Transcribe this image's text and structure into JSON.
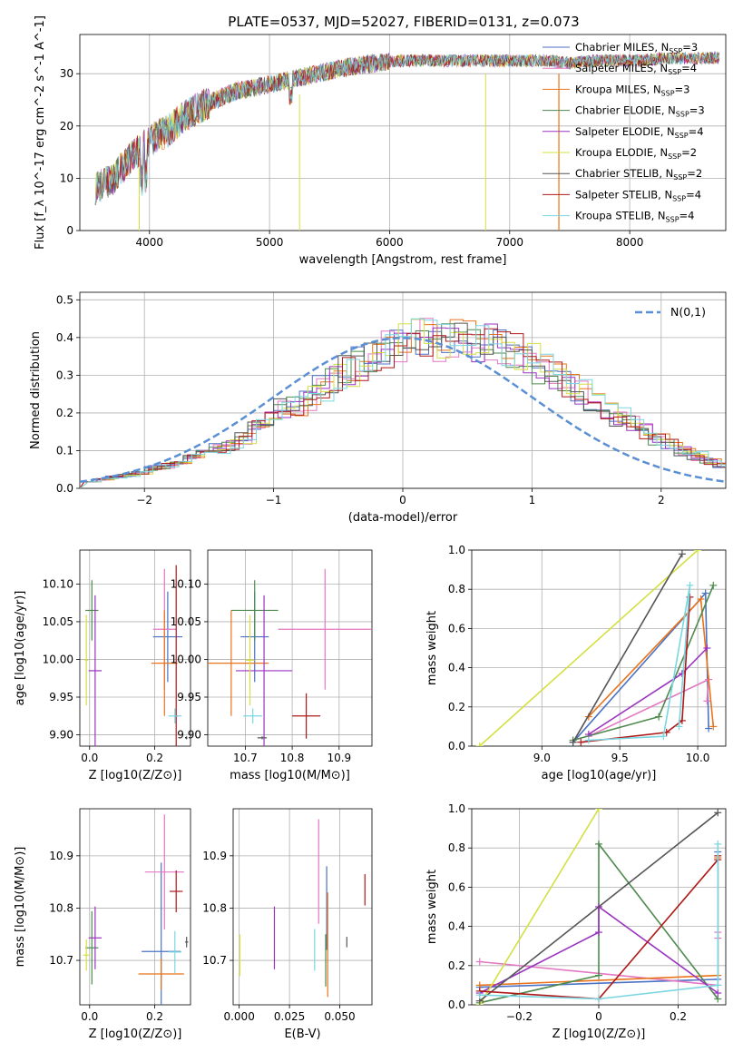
{
  "figure_title": "PLATE=0537, MJD=52027, FIBERID=0131, z=0.073",
  "colors": {
    "Chabrier MILES": "#4c72c4",
    "Salpeter MILES": "#e377c2",
    "Kroupa MILES": "#e8741c",
    "Chabrier ELODIE": "#4e8a4e",
    "Salpeter ELODIE": "#9a34c0",
    "Kroupa ELODIE": "#d4e040",
    "Chabrier STELIB": "#555555",
    "Salpeter STELIB": "#b01818",
    "Kroupa STELIB": "#7ad6e0"
  },
  "legend_labels": [
    "Chabrier MILES, N_SSP=3",
    "Salpeter MILES, N_SSP=4",
    "Kroupa MILES, N_SSP=3",
    "Chabrier ELODIE, N_SSP=3",
    "Salpeter ELODIE, N_SSP=4",
    "Kroupa ELODIE, N_SSP=2",
    "Chabrier STELIB, N_SSP=2",
    "Salpeter STELIB, N_SSP=4",
    "Kroupa STELIB, N_SSP=4"
  ],
  "chart_data": [
    {
      "type": "line",
      "title": "PLATE=0537, MJD=52027, FIBERID=0131, z=0.073",
      "xlabel": "wavelength [Angstrom, rest frame]",
      "ylabel": "Flux [f_λ 10^-17 erg cm^-2 s^-1 A^-1]",
      "xlim": [
        3420,
        8800
      ],
      "ylim": [
        0,
        37.5
      ],
      "xticks": [
        4000,
        5000,
        6000,
        7000,
        8000
      ],
      "yticks": [
        0,
        10,
        20,
        30
      ],
      "x": [
        3550,
        3700,
        3850,
        3950,
        4050,
        4150,
        4300,
        4500,
        4700,
        4900,
        5100,
        5300,
        5500,
        5700,
        5900,
        6100,
        6300,
        6500,
        6700,
        6900,
        7100,
        7300,
        7500,
        7700,
        7900,
        8100,
        8300,
        8500,
        8750
      ],
      "series": [
        {
          "name": "Chabrier MILES, N_SSP=3",
          "values": [
            8,
            10,
            14,
            16,
            18,
            19,
            22,
            24.5,
            26.5,
            27.5,
            28.5,
            29.5,
            30.5,
            31.5,
            32,
            32.5,
            32.5,
            32.5,
            32.5,
            32.5,
            32.5,
            32.5,
            32,
            32.5,
            32.5,
            32.5,
            33,
            33,
            33
          ]
        }
      ],
      "legend": "right"
    },
    {
      "type": "bar",
      "title": "",
      "xlabel": "(data-model)/error",
      "ylabel": "Normed distribution",
      "xlim": [
        -2.5,
        2.5
      ],
      "ylim": [
        0,
        0.52
      ],
      "xticks": [
        -2,
        -1,
        0,
        1,
        2
      ],
      "yticks": [
        0,
        0.1,
        0.2,
        0.3,
        0.4,
        0.5
      ],
      "bin_width": 0.1,
      "bin_start": -2.5,
      "histogram_values": [
        0.02,
        0.025,
        0.03,
        0.035,
        0.04,
        0.055,
        0.06,
        0.07,
        0.085,
        0.1,
        0.105,
        0.115,
        0.135,
        0.16,
        0.18,
        0.21,
        0.22,
        0.24,
        0.265,
        0.29,
        0.31,
        0.33,
        0.35,
        0.37,
        0.39,
        0.41,
        0.4,
        0.39,
        0.395,
        0.4,
        0.39,
        0.385,
        0.37,
        0.36,
        0.34,
        0.32,
        0.3,
        0.28,
        0.26,
        0.23,
        0.21,
        0.19,
        0.17,
        0.15,
        0.13,
        0.115,
        0.1,
        0.085,
        0.07,
        0.06
      ],
      "gaussian_label": "N(0,1)",
      "legend": "top-right"
    },
    {
      "type": "scatter",
      "xlabel": "Z [log10(Z/Z⊙)]",
      "ylabel": "age [log10(age/yr)]",
      "xlim": [
        -0.03,
        0.31
      ],
      "ylim": [
        9.885,
        10.145
      ],
      "xticks": [
        0.0,
        0.2
      ],
      "yticks": [
        9.9,
        9.95,
        10.0,
        10.05,
        10.1
      ],
      "points": [
        {
          "s": "Chabrier MILES",
          "x": 0.24,
          "y": 10.03,
          "xerr": 0.045,
          "yerr": 0.06
        },
        {
          "s": "Salpeter MILES",
          "x": 0.23,
          "y": 10.04,
          "xerr": 0.035,
          "yerr": 0.08
        },
        {
          "s": "Kroupa MILES",
          "x": 0.23,
          "y": 9.995,
          "xerr": 0.04,
          "yerr": 0.07
        },
        {
          "s": "Chabrier ELODIE",
          "x": 0.007,
          "y": 10.065,
          "xerr": 0.02,
          "yerr": 0.04
        },
        {
          "s": "Salpeter ELODIE",
          "x": 0.017,
          "y": 9.985,
          "xerr": 0.02,
          "yerr": 0.1
        },
        {
          "s": "Kroupa ELODIE",
          "x": -0.01,
          "y": 9.999,
          "xerr": 0.005,
          "yerr": 0.06
        },
        {
          "s": "Chabrier STELIB",
          "x": 0.298,
          "y": 9.896,
          "xerr": 0.002,
          "yerr": 0.002
        },
        {
          "s": "Salpeter STELIB",
          "x": 0.266,
          "y": 9.925,
          "xerr": 0.005,
          "yerr": 0.2
        },
        {
          "s": "Kroupa STELIB",
          "x": 0.262,
          "y": 9.925,
          "xerr": 0.02,
          "yerr": 0.01
        }
      ]
    },
    {
      "type": "scatter",
      "xlabel": "mass [log10(M/M⊙)]",
      "ylabel": "",
      "xlim": [
        10.62,
        10.97
      ],
      "ylim": [
        9.885,
        10.145
      ],
      "xticks": [
        10.7,
        10.8,
        10.9
      ],
      "yticks": [
        9.9,
        9.95,
        10.0,
        10.05,
        10.1
      ],
      "points": [
        {
          "s": "Chabrier MILES",
          "x": 10.72,
          "y": 10.03,
          "xerr": 0.03,
          "yerr": 0.06
        },
        {
          "s": "Salpeter MILES",
          "x": 10.87,
          "y": 10.04,
          "xerr": 0.1,
          "yerr": 0.08
        },
        {
          "s": "Kroupa MILES",
          "x": 10.67,
          "y": 9.995,
          "xerr": 0.08,
          "yerr": 0.07
        },
        {
          "s": "Chabrier ELODIE",
          "x": 10.72,
          "y": 10.065,
          "xerr": 0.05,
          "yerr": 0.04
        },
        {
          "s": "Salpeter ELODIE",
          "x": 10.74,
          "y": 9.985,
          "xerr": 0.06,
          "yerr": 0.1
        },
        {
          "s": "Kroupa ELODIE",
          "x": 10.71,
          "y": 9.999,
          "xerr": 0.01,
          "yerr": 0.06
        },
        {
          "s": "Chabrier STELIB",
          "x": 10.736,
          "y": 9.896,
          "xerr": 0.01,
          "yerr": 0.002
        },
        {
          "s": "Salpeter STELIB",
          "x": 10.83,
          "y": 9.925,
          "xerr": 0.03,
          "yerr": 0.03
        },
        {
          "s": "Kroupa STELIB",
          "x": 10.716,
          "y": 9.925,
          "xerr": 0.02,
          "yerr": 0.01
        }
      ]
    },
    {
      "type": "line",
      "xlabel": "age [log10(age/yr)]",
      "ylabel": "mass weight",
      "xlim": [
        8.55,
        10.18
      ],
      "ylim": [
        0,
        1
      ],
      "xticks": [
        9.0,
        9.5,
        10.0
      ],
      "yticks": [
        0,
        0.2,
        0.4,
        0.6,
        0.8,
        1.0
      ],
      "series": [
        {
          "s": "Chabrier MILES",
          "x": [
            9.2,
            10.05,
            10.07
          ],
          "y": [
            0.02,
            0.78,
            0.09
          ]
        },
        {
          "s": "Salpeter MILES",
          "x": [
            9.3,
            10.07,
            10.06
          ],
          "y": [
            0.05,
            0.34,
            0.23
          ]
        },
        {
          "s": "Kroupa MILES",
          "x": [
            9.3,
            10.02,
            10.1
          ],
          "y": [
            0.15,
            0.75,
            0.1
          ]
        },
        {
          "s": "Chabrier ELODIE",
          "x": [
            9.2,
            9.75,
            10.1
          ],
          "y": [
            0.03,
            0.15,
            0.82
          ]
        },
        {
          "s": "Salpeter ELODIE",
          "x": [
            9.3,
            9.9,
            10.06
          ],
          "y": [
            0.06,
            0.37,
            0.5
          ]
        },
        {
          "s": "Kroupa ELODIE",
          "x": [
            8.6,
            10.0
          ],
          "y": [
            0.0,
            1.0
          ]
        },
        {
          "s": "Chabrier STELIB",
          "x": [
            9.2,
            9.9
          ],
          "y": [
            0.02,
            0.98
          ]
        },
        {
          "s": "Salpeter STELIB",
          "x": [
            9.25,
            9.8,
            9.9,
            9.95
          ],
          "y": [
            0.02,
            0.07,
            0.13,
            0.76
          ]
        },
        {
          "s": "Kroupa STELIB",
          "x": [
            9.3,
            9.78,
            9.95,
            9.88
          ],
          "y": [
            0.03,
            0.05,
            0.82,
            0.1
          ]
        }
      ]
    },
    {
      "type": "scatter",
      "xlabel": "Z [log10(Z/Z⊙)]",
      "ylabel": "mass [log10(M/M⊙)]",
      "xlim": [
        -0.03,
        0.31
      ],
      "ylim": [
        10.615,
        10.99
      ],
      "xticks": [
        0.0,
        0.2
      ],
      "yticks": [
        10.7,
        10.8,
        10.9
      ],
      "points": [
        {
          "s": "Chabrier MILES",
          "x": 0.22,
          "y": 10.717,
          "xerr": 0.06,
          "yerr": 0.17
        },
        {
          "s": "Salpeter MILES",
          "x": 0.23,
          "y": 10.869,
          "xerr": 0.06,
          "yerr": 0.11
        },
        {
          "s": "Kroupa MILES",
          "x": 0.22,
          "y": 10.674,
          "xerr": 0.07,
          "yerr": 0.03
        },
        {
          "s": "Chabrier ELODIE",
          "x": 0.007,
          "y": 10.724,
          "xerr": 0.02,
          "yerr": 0.07
        },
        {
          "s": "Salpeter ELODIE",
          "x": 0.017,
          "y": 10.743,
          "xerr": 0.02,
          "yerr": 0.06
        },
        {
          "s": "Kroupa ELODIE",
          "x": -0.01,
          "y": 10.71,
          "xerr": 0.01,
          "yerr": 0.03
        },
        {
          "s": "Chabrier STELIB",
          "x": 0.298,
          "y": 10.735,
          "xerr": 0.005,
          "yerr": 0.01
        },
        {
          "s": "Salpeter STELIB",
          "x": 0.266,
          "y": 10.832,
          "xerr": 0.02,
          "yerr": 0.04
        },
        {
          "s": "Kroupa STELIB",
          "x": 0.262,
          "y": 10.716,
          "xerr": 0.02,
          "yerr": 0.04
        }
      ]
    },
    {
      "type": "scatter",
      "xlabel": "E(B-V)",
      "ylabel": "",
      "xlim": [
        -0.003,
        0.066
      ],
      "ylim": [
        10.615,
        10.99
      ],
      "xticks": [
        0.0,
        0.025,
        0.05
      ],
      "yticks": [
        10.7,
        10.8,
        10.9
      ],
      "points": [
        {
          "s": "Chabrier MILES",
          "x": 0.0435,
          "y": 10.8,
          "xerr": 0,
          "yerr": 0.08
        },
        {
          "s": "Salpeter MILES",
          "x": 0.0395,
          "y": 10.87,
          "xerr": 0,
          "yerr": 0.1
        },
        {
          "s": "Kroupa MILES",
          "x": 0.044,
          "y": 10.73,
          "xerr": 0,
          "yerr": 0.1
        },
        {
          "s": "Chabrier ELODIE",
          "x": 0.043,
          "y": 10.7,
          "xerr": 0,
          "yerr": 0.05
        },
        {
          "s": "Salpeter ELODIE",
          "x": 0.0175,
          "y": 10.743,
          "xerr": 0,
          "yerr": 0.06
        },
        {
          "s": "Kroupa ELODIE",
          "x": 0.0003,
          "y": 10.71,
          "xerr": 0,
          "yerr": 0.04
        },
        {
          "s": "Chabrier STELIB",
          "x": 0.0535,
          "y": 10.735,
          "xerr": 0,
          "yerr": 0.01
        },
        {
          "s": "Salpeter STELIB",
          "x": 0.0625,
          "y": 10.835,
          "xerr": 0,
          "yerr": 0.03
        },
        {
          "s": "Kroupa STELIB",
          "x": 0.0375,
          "y": 10.72,
          "xerr": 0,
          "yerr": 0.04
        }
      ]
    },
    {
      "type": "line",
      "xlabel": "Z [log10(Z/Z⊙)]",
      "ylabel": "mass weight",
      "xlim": [
        -0.32,
        0.32
      ],
      "ylim": [
        0,
        1
      ],
      "xticks": [
        -0.2,
        0.0,
        0.2
      ],
      "yticks": [
        0,
        0.2,
        0.4,
        0.6,
        0.8,
        1.0
      ],
      "series": [
        {
          "s": "Chabrier MILES",
          "x": [
            -0.3,
            0.3,
            0.3
          ],
          "y": [
            0.09,
            0.13,
            0.78
          ]
        },
        {
          "s": "Salpeter MILES",
          "x": [
            -0.3,
            0.3,
            0.3,
            0.3
          ],
          "y": [
            0.22,
            0.1,
            0.34,
            0.37
          ]
        },
        {
          "s": "Kroupa MILES",
          "x": [
            -0.3,
            0.3,
            0.3
          ],
          "y": [
            0.1,
            0.15,
            0.75
          ]
        },
        {
          "s": "Chabrier ELODIE",
          "x": [
            -0.3,
            0.0,
            0.0,
            0.3
          ],
          "y": [
            0.01,
            0.15,
            0.82,
            0.03
          ]
        },
        {
          "s": "Salpeter ELODIE",
          "x": [
            -0.3,
            0.0,
            0.0,
            0.3
          ],
          "y": [
            0.06,
            0.37,
            0.5,
            0.06
          ]
        },
        {
          "s": "Kroupa ELODIE",
          "x": [
            -0.3,
            0.0
          ],
          "y": [
            0.0,
            1.0
          ]
        },
        {
          "s": "Chabrier STELIB",
          "x": [
            -0.3,
            0.3
          ],
          "y": [
            0.02,
            0.98
          ]
        },
        {
          "s": "Salpeter STELIB",
          "x": [
            -0.3,
            0.0,
            0.3,
            0.3
          ],
          "y": [
            0.07,
            0.03,
            0.74,
            0.76
          ]
        },
        {
          "s": "Kroupa STELIB",
          "x": [
            -0.3,
            0.0,
            0.3,
            0.3
          ],
          "y": [
            0.05,
            0.03,
            0.1,
            0.82
          ]
        }
      ]
    }
  ]
}
